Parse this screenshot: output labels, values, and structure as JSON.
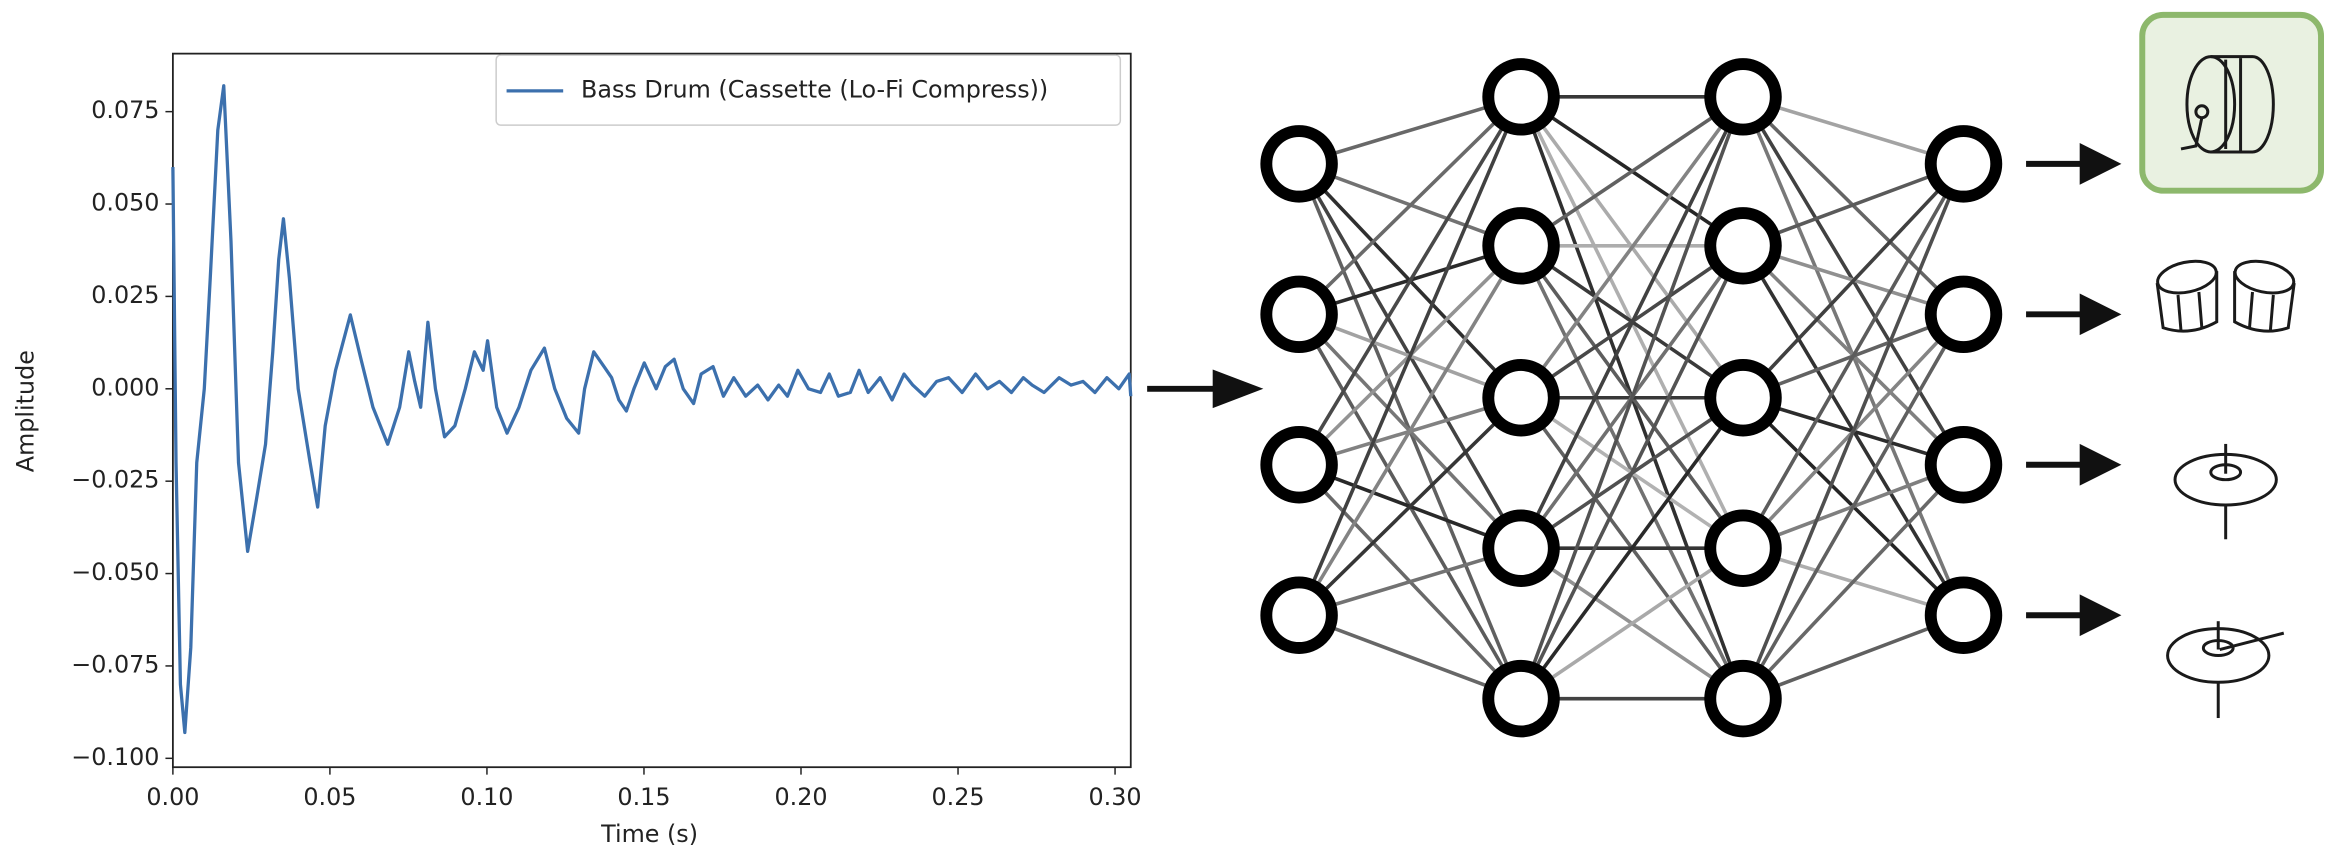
{
  "chart_data": {
    "type": "line",
    "xlabel": "Time (s)",
    "ylabel": "Amplitude",
    "xlim": [
      0,
      0.305
    ],
    "ylim": [
      -0.1024,
      0.0907
    ],
    "xticks": [
      {
        "value": 0,
        "label": "0.00"
      },
      {
        "value": 0.05,
        "label": "0.05"
      },
      {
        "value": 0.1,
        "label": "0.10"
      },
      {
        "value": 0.15,
        "label": "0.15"
      },
      {
        "value": 0.2,
        "label": "0.20"
      },
      {
        "value": 0.25,
        "label": "0.25"
      },
      {
        "value": 0.3,
        "label": "0.30"
      }
    ],
    "yticks": [
      {
        "value": -0.1,
        "label": "−0.100"
      },
      {
        "value": -0.075,
        "label": "−0.075"
      },
      {
        "value": -0.05,
        "label": "−0.050"
      },
      {
        "value": -0.025,
        "label": "−0.025"
      },
      {
        "value": 0,
        "label": "0.000"
      },
      0.025,
      {
        "value": 0.05,
        "label": "0.050"
      },
      0.075
    ],
    "legend": "upper right",
    "x": [
      0,
      0.001,
      0.0024,
      0.0038,
      0.0057,
      0.0076,
      0.01,
      0.0119,
      0.0143,
      0.0162,
      0.0185,
      0.0209,
      0.0238,
      0.0266,
      0.0295,
      0.0318,
      0.0337,
      0.0352,
      0.0371,
      0.0399,
      0.0437,
      0.0461,
      0.0485,
      0.0518,
      0.0565,
      0.0599,
      0.0637,
      0.0684,
      0.0722,
      0.0751,
      0.077,
      0.0789,
      0.0812,
      0.0836,
      0.0865,
      0.0898,
      0.0931,
      0.096,
      0.0988,
      0.1002,
      0.1031,
      0.1064,
      0.1102,
      0.114,
      0.1183,
      0.1216,
      0.1254,
      0.1292,
      0.1311,
      0.134,
      0.1373,
      0.1397,
      0.142,
      0.1444,
      0.1468,
      0.1501,
      0.1539,
      0.1568,
      0.1596,
      0.1625,
      0.1658,
      0.1682,
      0.172,
      0.1753,
      0.1786,
      0.1824,
      0.1862,
      0.1895,
      0.1929,
      0.1957,
      0.199,
      0.2024,
      0.2062,
      0.209,
      0.2119,
      0.2157,
      0.2185,
      0.2214,
      0.2252,
      0.229,
      0.2328,
      0.2356,
      0.2394,
      0.2432,
      0.247,
      0.2513,
      0.2556,
      0.2594,
      0.2632,
      0.267,
      0.2708,
      0.2736,
      0.2774,
      0.2822,
      0.286,
      0.2898,
      0.2936,
      0.2974,
      0.3012,
      0.3045,
      0.305
    ],
    "series": [
      {
        "name": "Bass Drum (Cassette (Lo-Fi Compress))",
        "color": "#3c70ad",
        "values": [
          0.06,
          -0.02,
          -0.08,
          -0.093,
          -0.07,
          -0.02,
          0.0,
          0.03,
          0.07,
          0.082,
          0.04,
          -0.02,
          -0.044,
          -0.03,
          -0.015,
          0.01,
          0.035,
          0.046,
          0.03,
          0.0,
          -0.02,
          -0.032,
          -0.01,
          0.005,
          0.02,
          0.008,
          -0.005,
          -0.015,
          -0.005,
          0.01,
          0.002,
          -0.005,
          0.018,
          0.0,
          -0.013,
          -0.01,
          0.0,
          0.01,
          0.005,
          0.013,
          -0.005,
          -0.012,
          -0.005,
          0.005,
          0.011,
          0.0,
          -0.008,
          -0.012,
          0.0,
          0.01,
          0.006,
          0.003,
          -0.003,
          -0.006,
          0.0,
          0.007,
          0.0,
          0.006,
          0.008,
          0.0,
          -0.004,
          0.004,
          0.006,
          -0.002,
          0.003,
          -0.002,
          0.001,
          -0.003,
          0.001,
          -0.002,
          0.005,
          0.0,
          -0.001,
          0.004,
          -0.002,
          -0.001,
          0.005,
          -0.001,
          0.003,
          -0.003,
          0.004,
          0.001,
          -0.002,
          0.002,
          0.003,
          -0.001,
          0.004,
          0.0,
          0.002,
          -0.001,
          0.003,
          0.001,
          -0.001,
          0.003,
          0.001,
          0.002,
          -0.001,
          0.003,
          0.0,
          0.004,
          -0.002
        ]
      }
    ]
  }
}
